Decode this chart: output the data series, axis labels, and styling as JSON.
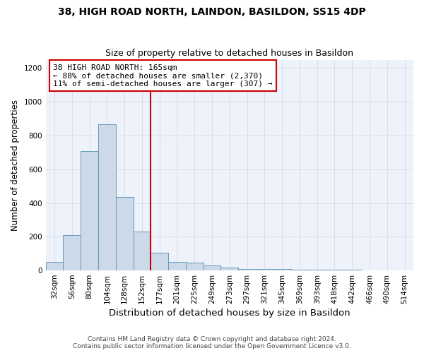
{
  "title1": "38, HIGH ROAD NORTH, LAINDON, BASILDON, SS15 4DP",
  "title2": "Size of property relative to detached houses in Basildon",
  "xlabel": "Distribution of detached houses by size in Basildon",
  "ylabel": "Number of detached properties",
  "footnote": "Contains HM Land Registry data © Crown copyright and database right 2024.\nContains public sector information licensed under the Open Government Licence v3.0.",
  "bin_labels": [
    "32sqm",
    "56sqm",
    "80sqm",
    "104sqm",
    "128sqm",
    "152sqm",
    "177sqm",
    "201sqm",
    "225sqm",
    "249sqm",
    "273sqm",
    "297sqm",
    "321sqm",
    "345sqm",
    "369sqm",
    "393sqm",
    "418sqm",
    "442sqm",
    "466sqm",
    "490sqm",
    "514sqm"
  ],
  "bar_heights": [
    50,
    210,
    710,
    865,
    435,
    230,
    105,
    50,
    45,
    30,
    15,
    10,
    10,
    8,
    5,
    5,
    3,
    3,
    2,
    2,
    2
  ],
  "bar_color": "#ccd9e8",
  "bar_edge_color": "#6699bb",
  "vline_x": 5.5,
  "vline_color": "#cc0000",
  "annotation_text": "38 HIGH ROAD NORTH: 165sqm\n← 88% of detached houses are smaller (2,370)\n11% of semi-detached houses are larger (307) →",
  "annotation_box_color": "#cc0000",
  "ylim": [
    0,
    1250
  ],
  "yticks": [
    0,
    200,
    400,
    600,
    800,
    1000,
    1200
  ],
  "background_color": "#eef2fa",
  "grid_color": "#d8dde8",
  "title1_fontsize": 10,
  "title2_fontsize": 9,
  "xlabel_fontsize": 9.5,
  "ylabel_fontsize": 8.5,
  "tick_fontsize": 7.5,
  "annotation_fontsize": 8,
  "footnote_fontsize": 6.5
}
